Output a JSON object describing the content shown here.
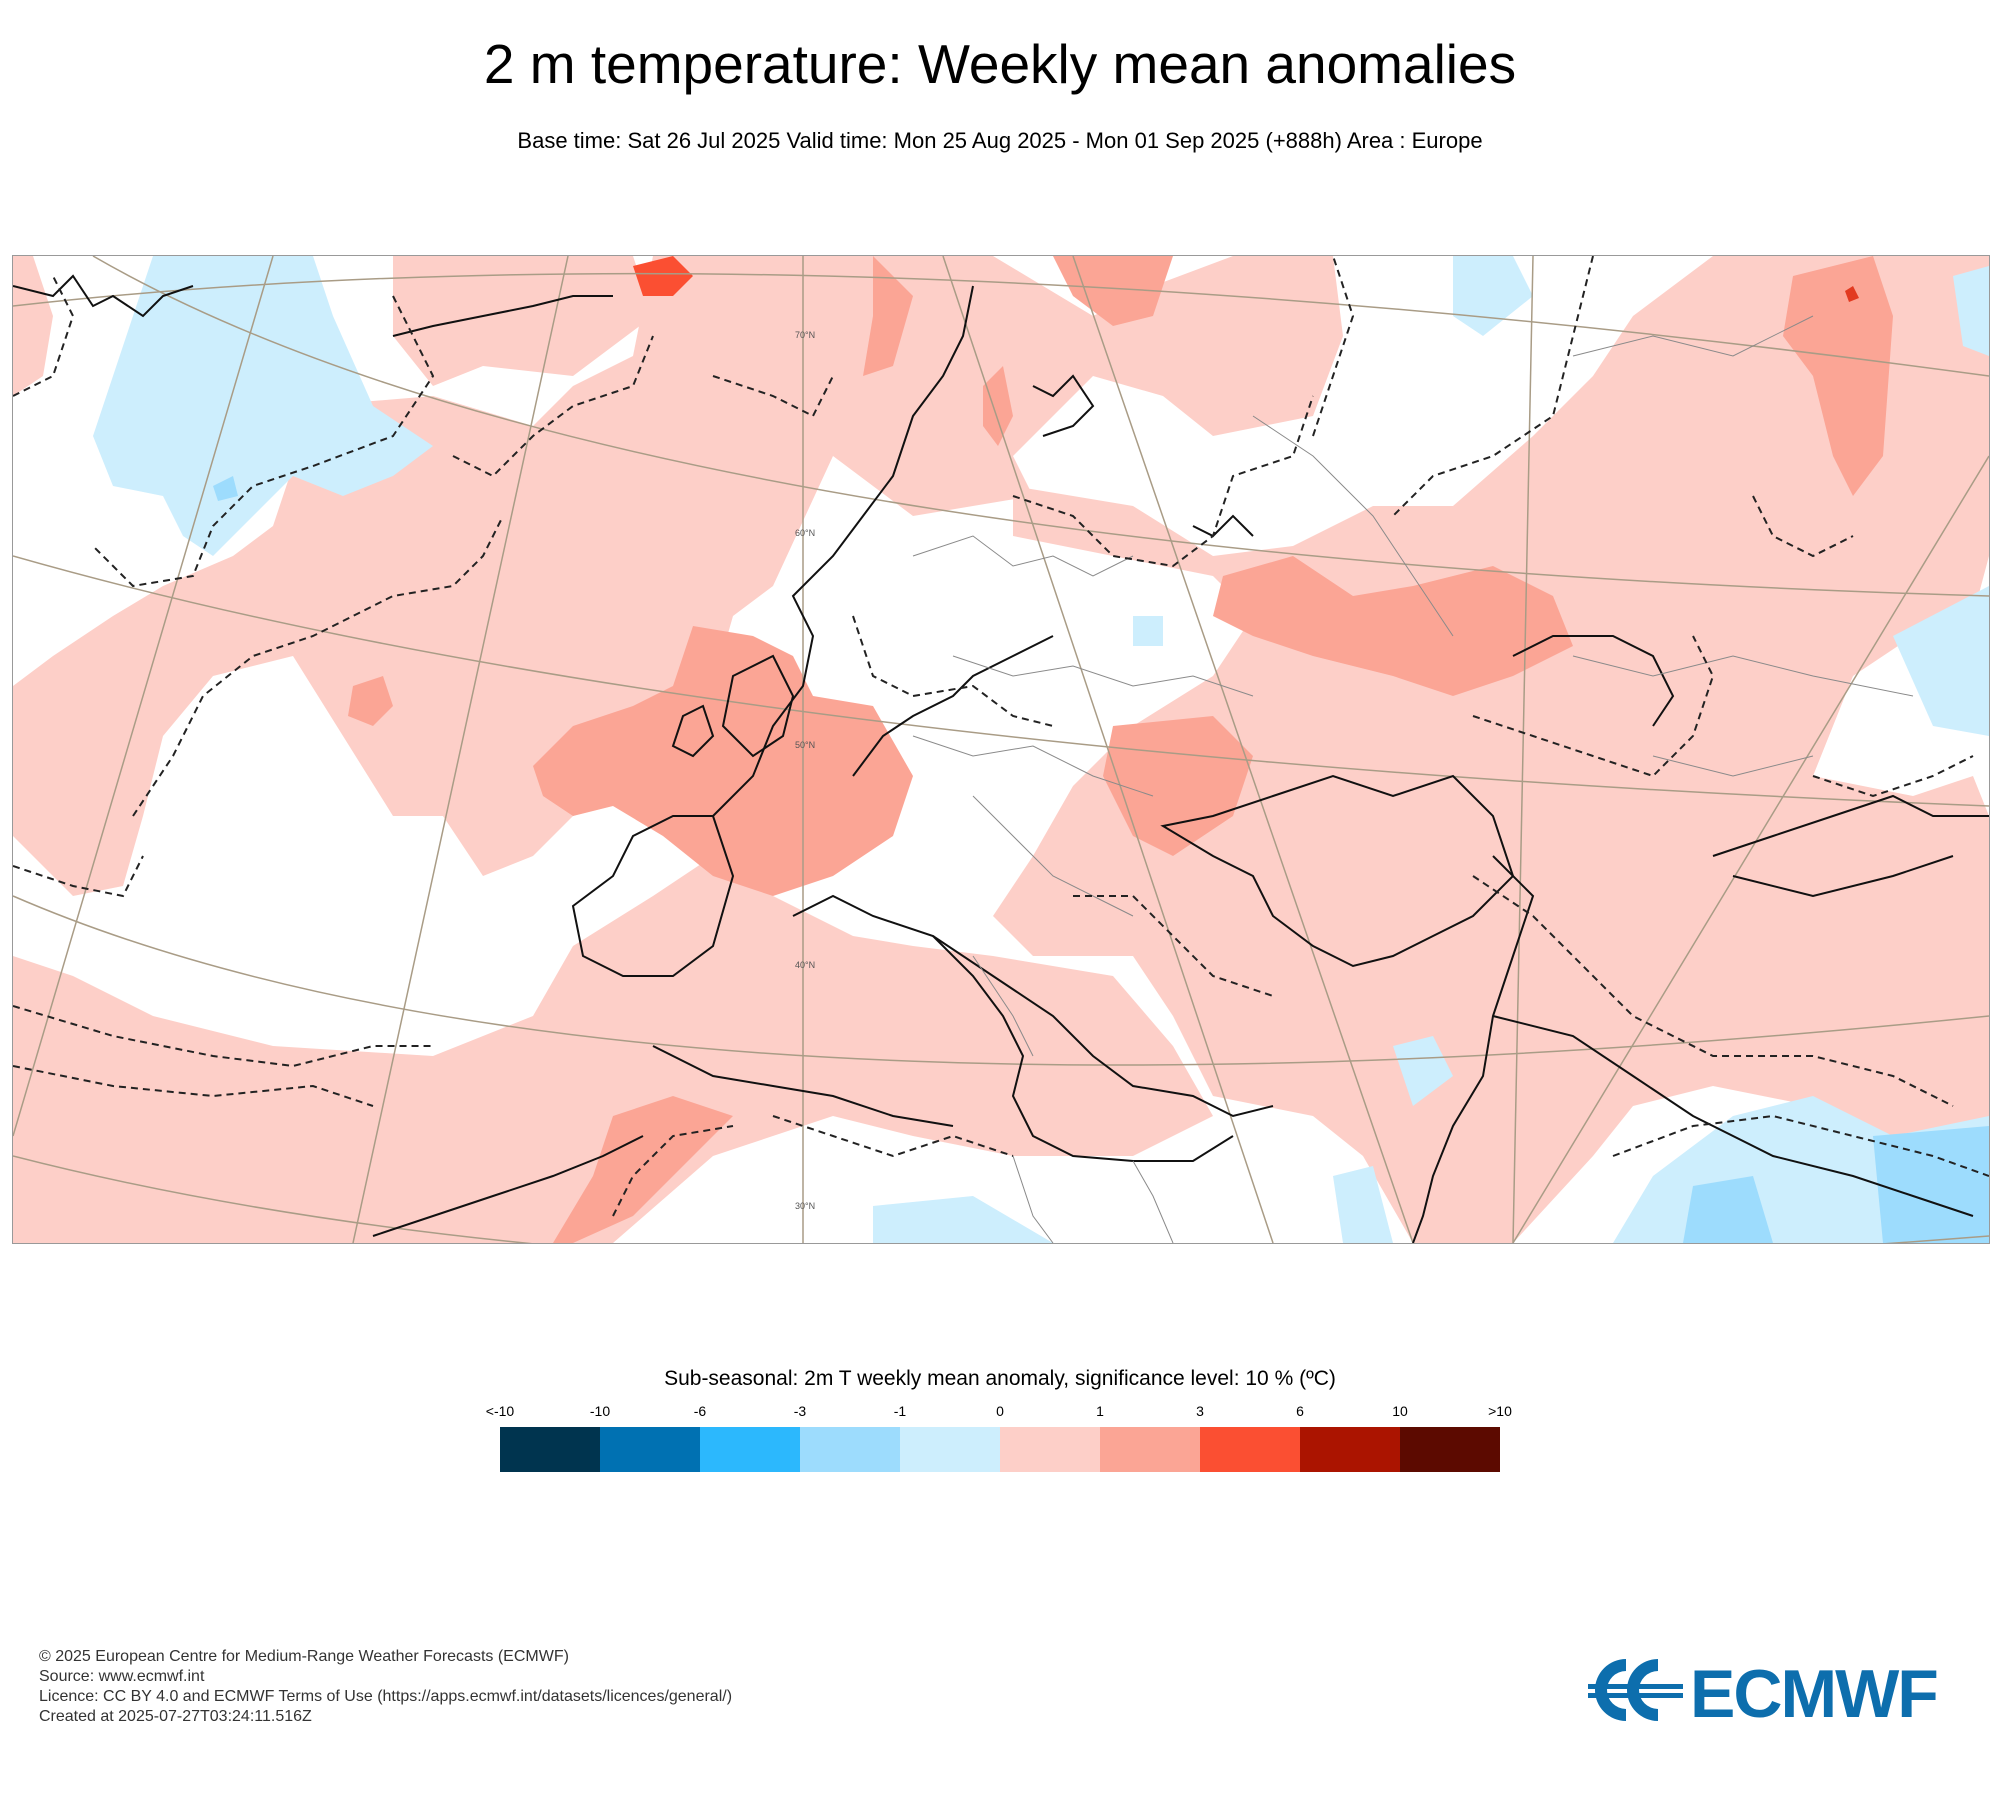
{
  "header": {
    "title": "2 m temperature: Weekly mean anomalies",
    "subtitle": "Base time: Sat 26 Jul 2025 Valid time: Mon 25 Aug 2025 - Mon 01 Sep 2025 (+888h) Area : Europe"
  },
  "map": {
    "lat_labels": [
      "70°N",
      "60°N",
      "50°N",
      "40°N",
      "30°N"
    ],
    "colors": {
      "light_red": "#fdcfc8",
      "medium_red": "#fba595",
      "strong_red": "#fb4f32",
      "light_blue": "#cdeefd",
      "medium_blue": "#9ddcfd"
    }
  },
  "legend": {
    "title": "Sub-seasonal: 2m T weekly mean anomaly, significance level: 10 % (ºC)",
    "labels": [
      "<-10",
      "-10",
      "-6",
      "-3",
      "-1",
      "0",
      "1",
      "3",
      "6",
      "10",
      ">10"
    ],
    "colors": [
      "#00344f",
      "#0071b2",
      "#2cb8fd",
      "#9ddcfd",
      "#cdeefd",
      "#fdcfc8",
      "#fba595",
      "#fb4f32",
      "#ab1400",
      "#5c0a00"
    ]
  },
  "footer": {
    "line1": "© 2025 European Centre for Medium-Range Weather Forecasts (ECMWF)",
    "line2": "Source: www.ecmwf.int",
    "line3": "Licence: CC BY 4.0 and ECMWF Terms of Use (https://apps.ecmwf.int/datasets/licences/general/)",
    "line4": "Created at 2025-07-27T03:24:11.516Z"
  },
  "logo": {
    "text": "ECMWF",
    "color": "#0d6ead"
  }
}
